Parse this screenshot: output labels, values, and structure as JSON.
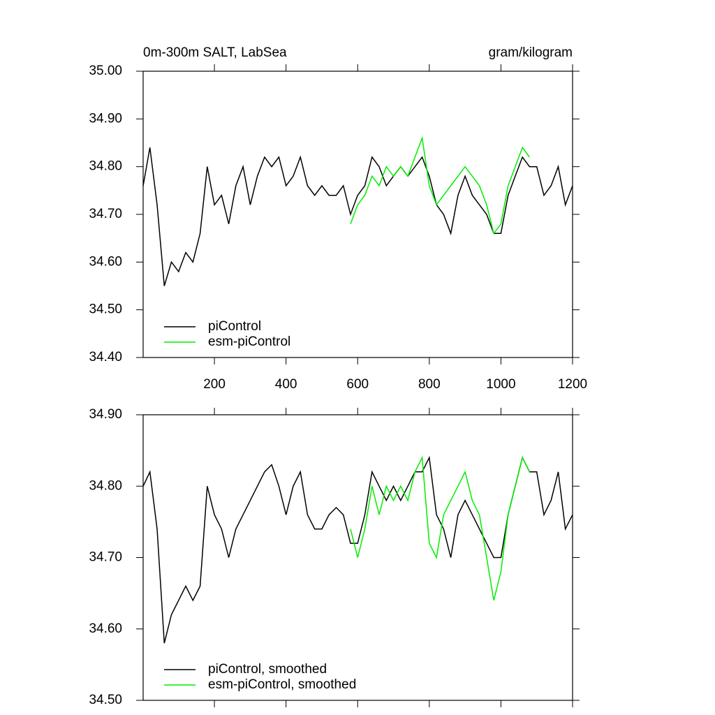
{
  "chart_data": [
    {
      "type": "line",
      "title": "0m-300m SALT, LabSea",
      "units_label": "gram/kilogram",
      "x": [
        1,
        20,
        40,
        60,
        80,
        100,
        120,
        140,
        160,
        180,
        200,
        220,
        240,
        260,
        280,
        300,
        320,
        340,
        360,
        380,
        400,
        420,
        440,
        460,
        480,
        500,
        520,
        540,
        560,
        580,
        600,
        620,
        640,
        660,
        680,
        700,
        720,
        740,
        760,
        780,
        800,
        820,
        840,
        860,
        880,
        900,
        920,
        940,
        960,
        980,
        1000,
        1020,
        1040,
        1060,
        1080,
        1100,
        1120,
        1140,
        1160,
        1180,
        1200
      ],
      "series": [
        {
          "name": "piControl",
          "color": "#000000",
          "values": [
            34.76,
            34.84,
            34.72,
            34.55,
            34.6,
            34.58,
            34.62,
            34.6,
            34.66,
            34.8,
            34.72,
            34.74,
            34.68,
            34.76,
            34.8,
            34.72,
            34.78,
            34.82,
            34.8,
            34.82,
            34.76,
            34.78,
            34.82,
            34.76,
            34.74,
            34.76,
            34.74,
            34.74,
            34.76,
            34.7,
            34.74,
            34.76,
            34.82,
            34.8,
            34.76,
            34.78,
            34.8,
            34.78,
            34.8,
            34.82,
            34.78,
            34.72,
            34.7,
            34.66,
            34.74,
            34.78,
            34.74,
            34.72,
            34.7,
            34.66,
            34.66,
            34.74,
            34.78,
            34.82,
            34.8,
            34.8,
            34.74,
            34.76,
            34.8,
            34.72,
            34.76
          ]
        },
        {
          "name": "esm-piControl",
          "color": "#00ee00",
          "values": [
            null,
            null,
            null,
            null,
            null,
            null,
            null,
            null,
            null,
            null,
            null,
            null,
            null,
            null,
            null,
            null,
            null,
            null,
            null,
            null,
            null,
            null,
            null,
            null,
            null,
            null,
            null,
            null,
            null,
            34.68,
            34.72,
            34.74,
            34.78,
            34.76,
            34.8,
            34.78,
            34.8,
            34.78,
            34.82,
            34.86,
            34.76,
            34.72,
            34.74,
            34.76,
            34.78,
            34.8,
            34.78,
            34.76,
            34.72,
            34.66,
            34.68,
            34.76,
            34.8,
            34.84,
            34.82,
            null,
            null,
            null,
            null,
            null,
            null
          ]
        }
      ],
      "xlim": [
        1,
        1200
      ],
      "xticks": [
        200,
        400,
        600,
        800,
        1000,
        1200
      ],
      "show_xtick_labels": true,
      "ylim": [
        34.4,
        35.0
      ],
      "yticks": [
        {
          "value": 34.4,
          "label": "34.40"
        },
        {
          "value": 34.5,
          "label": "34.50"
        },
        {
          "value": 34.6,
          "label": "34.60"
        },
        {
          "value": 34.7,
          "label": "34.70"
        },
        {
          "value": 34.8,
          "label": "34.80"
        },
        {
          "value": 34.9,
          "label": "34.90"
        },
        {
          "value": 35.0,
          "label": "35.00"
        }
      ],
      "legend": "lower left"
    },
    {
      "type": "line",
      "x": [
        1,
        20,
        40,
        60,
        80,
        100,
        120,
        140,
        160,
        180,
        200,
        220,
        240,
        260,
        280,
        300,
        320,
        340,
        360,
        380,
        400,
        420,
        440,
        460,
        480,
        500,
        520,
        540,
        560,
        580,
        600,
        620,
        640,
        660,
        680,
        700,
        720,
        740,
        760,
        780,
        800,
        820,
        840,
        860,
        880,
        900,
        920,
        940,
        960,
        980,
        1000,
        1020,
        1040,
        1060,
        1080,
        1100,
        1120,
        1140,
        1160,
        1180,
        1200
      ],
      "series": [
        {
          "name": "piControl, smoothed",
          "color": "#000000",
          "values": [
            34.8,
            34.82,
            34.74,
            34.58,
            34.62,
            34.64,
            34.66,
            34.64,
            34.66,
            34.8,
            34.76,
            34.74,
            34.7,
            34.74,
            34.76,
            34.78,
            34.8,
            34.82,
            34.83,
            34.8,
            34.76,
            34.8,
            34.82,
            34.76,
            34.74,
            34.74,
            34.76,
            34.77,
            34.76,
            34.72,
            34.72,
            34.76,
            34.82,
            34.8,
            34.78,
            34.8,
            34.78,
            34.8,
            34.82,
            34.82,
            34.84,
            34.76,
            34.74,
            34.7,
            34.76,
            34.78,
            34.76,
            34.74,
            34.72,
            34.7,
            34.7,
            34.76,
            34.8,
            34.84,
            34.82,
            34.82,
            34.76,
            34.78,
            34.82,
            34.74,
            34.76
          ]
        },
        {
          "name": "esm-piControl, smoothed",
          "color": "#00ee00",
          "values": [
            null,
            null,
            null,
            null,
            null,
            null,
            null,
            null,
            null,
            null,
            null,
            null,
            null,
            null,
            null,
            null,
            null,
            null,
            null,
            null,
            null,
            null,
            null,
            null,
            null,
            null,
            null,
            null,
            null,
            34.74,
            34.7,
            34.74,
            34.8,
            34.76,
            34.8,
            34.78,
            34.8,
            34.78,
            34.82,
            34.84,
            34.72,
            34.7,
            34.76,
            34.78,
            34.8,
            34.82,
            34.78,
            34.76,
            34.7,
            34.64,
            34.68,
            34.76,
            34.8,
            34.84,
            34.82,
            null,
            null,
            null,
            null,
            null,
            null
          ]
        }
      ],
      "xlim": [
        1,
        1200
      ],
      "xticks": [
        200,
        400,
        600,
        800,
        1000,
        1200
      ],
      "show_xtick_labels": false,
      "ylim": [
        34.5,
        34.9
      ],
      "yticks": [
        {
          "value": 34.5,
          "label": "34.50"
        },
        {
          "value": 34.6,
          "label": "34.60"
        },
        {
          "value": 34.7,
          "label": "34.70"
        },
        {
          "value": 34.8,
          "label": "34.80"
        },
        {
          "value": 34.9,
          "label": "34.90"
        }
      ],
      "legend": "lower left"
    }
  ]
}
